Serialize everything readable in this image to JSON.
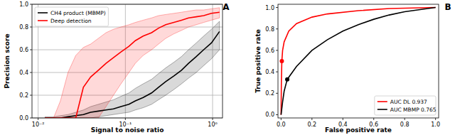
{
  "chart_data": [
    {
      "type": "line",
      "title": "A",
      "x_label": "Signal to noise ratio",
      "y_label": "Precision score",
      "log": "x",
      "grid": true,
      "legend": "upper left",
      "xlim": [
        0.0085,
        1.3
      ],
      "ylim": [
        0,
        1.0
      ],
      "xticks": [
        {
          "value": 0.01,
          "label": "10⁻²"
        },
        {
          "value": 0.1,
          "label": "10⁻¹"
        },
        {
          "value": 1,
          "label": "10⁰"
        }
      ],
      "yticks": [
        {
          "value": 0,
          "label": "0.0"
        },
        0.2,
        0.4,
        0.6,
        0.8,
        {
          "value": 1.0,
          "label": "1.0"
        }
      ],
      "x": [
        0.012,
        0.015,
        0.018,
        0.022,
        0.027,
        0.033,
        0.04,
        0.049,
        0.06,
        0.073,
        0.089,
        0.11,
        0.13,
        0.16,
        0.2,
        0.24,
        0.29,
        0.36,
        0.44,
        0.53,
        0.65,
        0.79,
        0.97,
        1.2
      ],
      "series": [
        {
          "name": "CH4 product (MBMP)",
          "color": "#000000",
          "values": [
            0,
            0,
            0,
            0.01,
            0.02,
            0.03,
            0.05,
            0.06,
            0.07,
            0.08,
            0.1,
            0.12,
            0.15,
            0.18,
            0.22,
            0.27,
            0.32,
            0.37,
            0.42,
            0.48,
            0.54,
            0.6,
            0.66,
            0.76
          ],
          "upper": [
            0.01,
            0.01,
            0.02,
            0.03,
            0.05,
            0.07,
            0.1,
            0.12,
            0.14,
            0.16,
            0.19,
            0.22,
            0.26,
            0.3,
            0.34,
            0.39,
            0.44,
            0.49,
            0.54,
            0.6,
            0.66,
            0.72,
            0.78,
            0.85
          ],
          "lower": [
            0,
            0,
            0,
            0,
            0,
            0,
            0,
            0.01,
            0.02,
            0.03,
            0.04,
            0.05,
            0.07,
            0.09,
            0.12,
            0.16,
            0.2,
            0.25,
            0.3,
            0.35,
            0.4,
            0.46,
            0.52,
            0.6
          ]
        },
        {
          "name": "Deep detection",
          "color": "#ff0000",
          "values": [
            0,
            0,
            0,
            0,
            0,
            0.27,
            0.36,
            0.42,
            0.48,
            0.53,
            0.58,
            0.63,
            0.68,
            0.72,
            0.75,
            0.79,
            0.82,
            0.84,
            0.86,
            0.88,
            0.89,
            0.9,
            0.92,
            0.93
          ],
          "upper": [
            0,
            0,
            0.15,
            0.4,
            0.55,
            0.62,
            0.65,
            0.7,
            0.75,
            0.78,
            0.8,
            0.82,
            0.84,
            0.86,
            0.88,
            0.9,
            0.91,
            0.92,
            0.93,
            0.94,
            0.95,
            0.95,
            0.96,
            0.97
          ],
          "lower": [
            0,
            0,
            0,
            0,
            0,
            0,
            0,
            0,
            0.1,
            0.2,
            0.3,
            0.4,
            0.48,
            0.55,
            0.6,
            0.65,
            0.7,
            0.74,
            0.77,
            0.8,
            0.82,
            0.84,
            0.86,
            0.88
          ]
        }
      ]
    },
    {
      "type": "line",
      "title": "B",
      "x_label": "False positive rate",
      "y_label": "True positive rate",
      "grid": false,
      "legend": "lower right",
      "xlim": [
        -0.02,
        1.02
      ],
      "ylim": [
        -0.03,
        1.03
      ],
      "xticks": [
        {
          "value": 0,
          "label": "0.0"
        },
        0.2,
        0.4,
        0.6,
        0.8,
        {
          "value": 1.0,
          "label": "1.0"
        }
      ],
      "yticks": [
        {
          "value": 0,
          "label": "0.0"
        },
        0.2,
        0.4,
        0.6,
        0.8,
        {
          "value": 1.0,
          "label": "1.0"
        }
      ],
      "series": [
        {
          "name": "AUC DL 0.937",
          "color": "#ff0000",
          "x": [
            0,
            0.002,
            0.005,
            0.01,
            0.02,
            0.05,
            0.1,
            0.2,
            0.3,
            0.5,
            0.7,
            1.0
          ],
          "values": [
            0,
            0.3,
            0.5,
            0.6,
            0.68,
            0.78,
            0.85,
            0.91,
            0.94,
            0.97,
            0.99,
            1.0
          ],
          "highlight": [
            0.005,
            0.5
          ]
        },
        {
          "name": "AUC MBMP 0.765",
          "color": "#000000",
          "x": [
            0,
            0.01,
            0.02,
            0.04,
            0.1,
            0.2,
            0.3,
            0.4,
            0.5,
            0.6,
            0.7,
            0.8,
            0.9,
            1.0
          ],
          "values": [
            0,
            0.12,
            0.22,
            0.33,
            0.45,
            0.6,
            0.7,
            0.78,
            0.84,
            0.89,
            0.93,
            0.96,
            0.98,
            1.0
          ],
          "highlight": [
            0.04,
            0.33
          ]
        }
      ]
    }
  ]
}
